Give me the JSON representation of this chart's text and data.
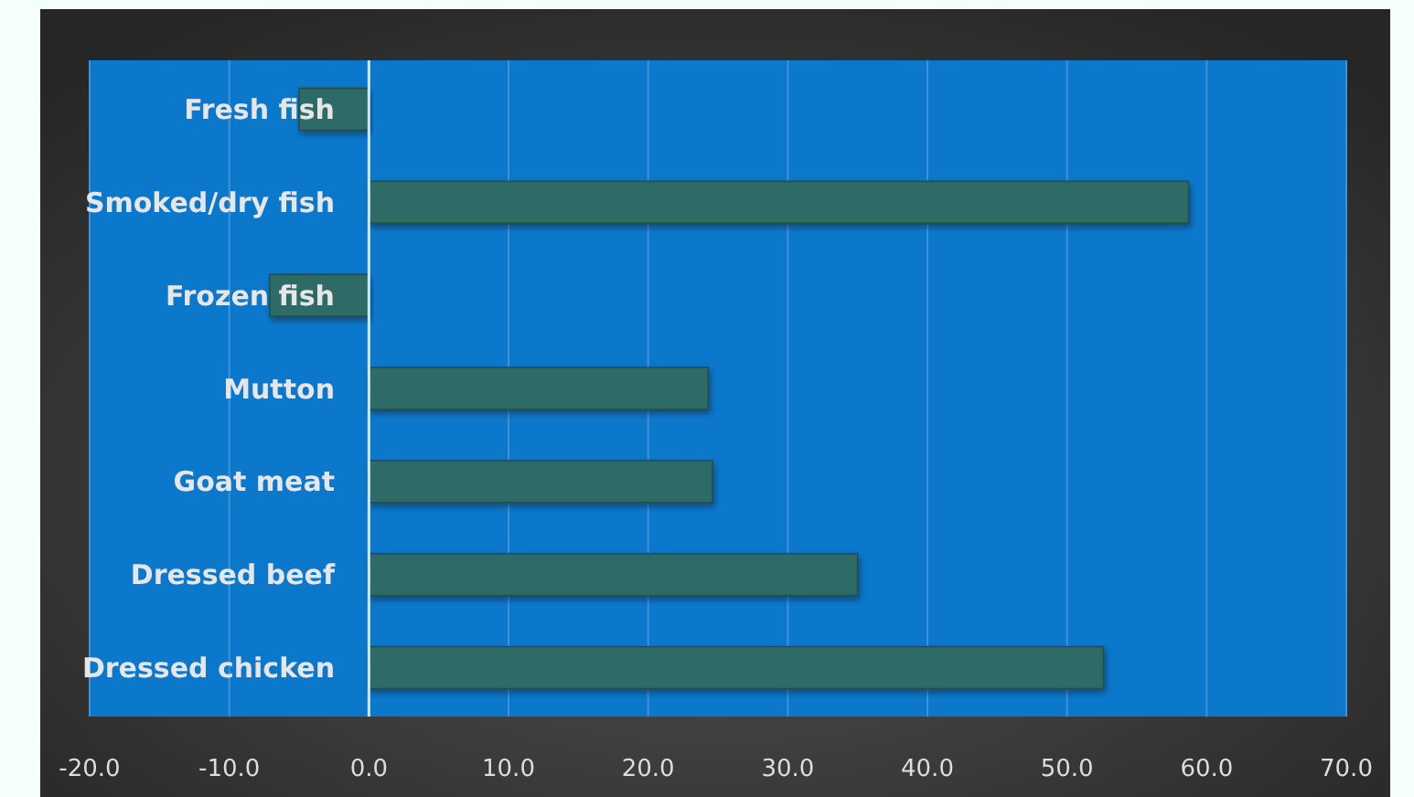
{
  "chart_data": {
    "type": "bar",
    "orientation": "horizontal",
    "categories": [
      "Fresh fish",
      "Smoked/dry fish",
      "Frozen fish",
      "Mutton",
      "Goat meat",
      "Dressed beef",
      "Dressed chicken"
    ],
    "values": [
      -5.0,
      58.7,
      -7.1,
      24.3,
      24.6,
      35.0,
      52.6
    ],
    "color": "#2f6b66",
    "xlim": [
      -20,
      70
    ],
    "xticks": [
      {
        "value": -20,
        "label": "-20.0"
      },
      {
        "value": -10,
        "label": "-10.0"
      },
      {
        "value": 0,
        "label": "0.0"
      },
      {
        "value": 10,
        "label": "10.0"
      },
      {
        "value": 20,
        "label": "20.0"
      },
      {
        "value": 30,
        "label": "30.0"
      },
      {
        "value": 40,
        "label": "40.0"
      },
      {
        "value": 50,
        "label": "50.0"
      },
      {
        "value": 60,
        "label": "60.0"
      },
      {
        "value": 70,
        "label": "70.0"
      }
    ],
    "grid": "x"
  }
}
